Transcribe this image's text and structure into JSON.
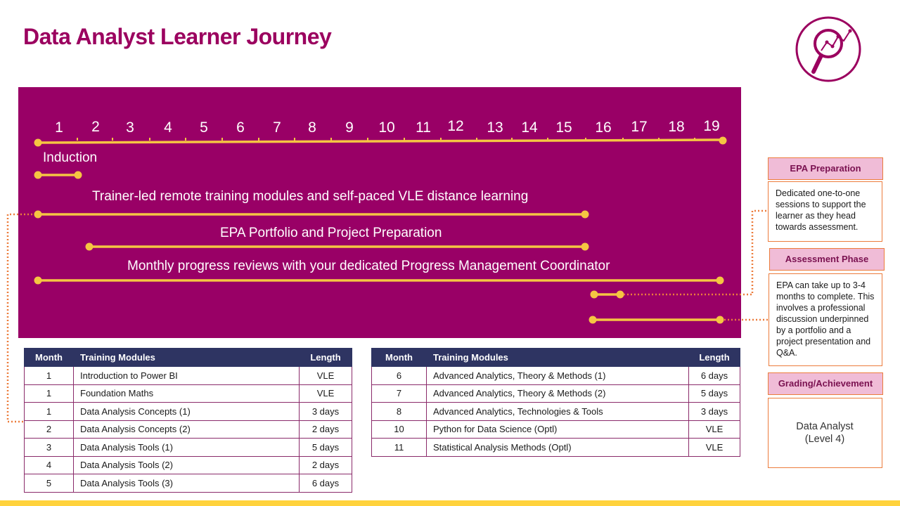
{
  "page": {
    "title": "Data Analyst Learner Journey",
    "brand_color": "#990066",
    "accent_color": "#f5c542",
    "connector_color": "#ec7c3c",
    "logo_icon": "magnifier-chart-icon"
  },
  "timeline": {
    "months": [
      "1",
      "2",
      "3",
      "4",
      "5",
      "6",
      "7",
      "8",
      "9",
      "10",
      "11",
      "12",
      "13",
      "14",
      "15",
      "16",
      "17",
      "18",
      "19"
    ],
    "rows": [
      {
        "label": "Induction",
        "start_month": 1,
        "end_month": 2
      },
      {
        "label": "Trainer-led remote training modules and self-paced VLE distance learning",
        "start_month": 1,
        "end_month": 16
      },
      {
        "label": "EPA Portfolio and Project Preparation",
        "start_month": 2,
        "end_month": 16
      },
      {
        "label": "Monthly progress reviews with your dedicated Progress Management Coordinator",
        "start_month": 1,
        "end_month": 19
      }
    ]
  },
  "table_left": {
    "headers": [
      "Month",
      "Training Modules",
      "Length"
    ],
    "rows": [
      [
        "1",
        "Introduction  to Power BI",
        "VLE"
      ],
      [
        "1",
        "Foundation  Maths",
        "VLE"
      ],
      [
        "1",
        "Data Analysis Concepts  (1)",
        "3 days"
      ],
      [
        "2",
        "Data Analysis Concepts  (2)",
        "2 days"
      ],
      [
        "3",
        "Data Analysis Tools  (1)",
        "5 days"
      ],
      [
        "4",
        "Data Analysis Tools  (2)",
        "2 days"
      ],
      [
        "5",
        "Data Analysis Tools  (3)",
        "6 days"
      ]
    ]
  },
  "table_right": {
    "headers": [
      "Month",
      "Training Modules",
      "Length"
    ],
    "rows": [
      [
        "6",
        "Advanced  Analytics, Theory & Methods  (1)",
        "6 days"
      ],
      [
        "7",
        "Advanced  Analytics, Theory & Methods  (2)",
        "5 days"
      ],
      [
        "8",
        "Advanced  Analytics, Technologies  & Tools",
        "3 days"
      ],
      [
        "10",
        "Python for Data Science (Optl)",
        "VLE"
      ],
      [
        "11",
        "Statistical Analysis Methods  (Optl)",
        "VLE"
      ]
    ]
  },
  "sidebar": {
    "epa_prep": {
      "heading": "EPA Preparation",
      "text": "Dedicated one-to-one sessions to support the learner as they head towards assessment."
    },
    "assessment": {
      "heading": "Assessment Phase",
      "text": "EPA can take up to 3-4 months to complete. This involves a professional discussion underpinned  by a portfolio  and a project presentation  and Q&A."
    },
    "grading": {
      "heading": "Grading/Achievement",
      "text": "Data Analyst\n(Level 4)"
    }
  }
}
